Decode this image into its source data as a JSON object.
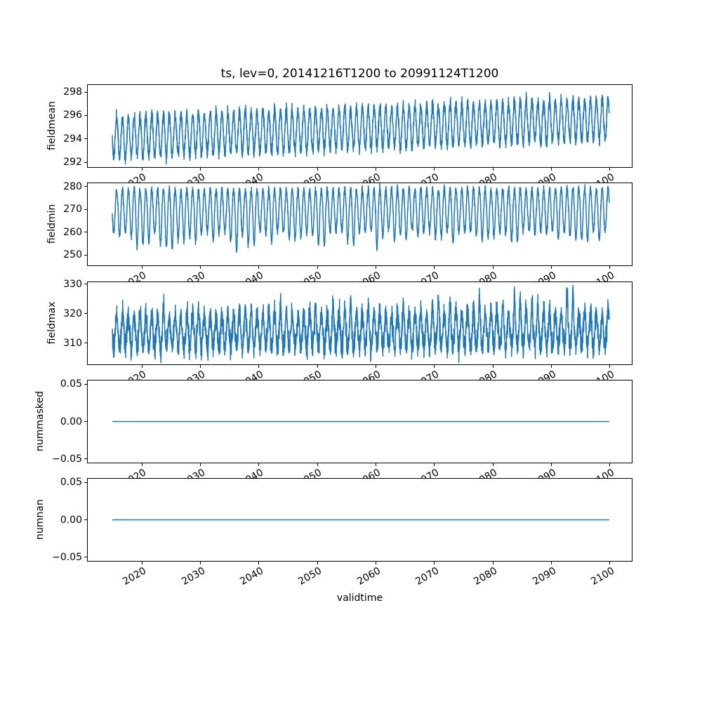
{
  "figure": {
    "title": "ts, lev=0, 20141216T1200 to 20991124T1200",
    "background_color": "#ffffff",
    "axes_edge_color": "#000000",
    "text_color": "#000000",
    "line_color": "#1f77b4"
  },
  "chart_data": {
    "type": "line",
    "title": "ts, lev=0, 20141216T1200 to 20991124T1200",
    "xlabel": "validtime",
    "x_axis": {
      "label": "validtime",
      "xlim": [
        2010.76,
        2103.76
      ],
      "data_x_start": 2014.96,
      "data_x_end": 2099.9,
      "points_per_year": 52,
      "xticks": [
        2020,
        2030,
        2040,
        2050,
        2060,
        2070,
        2080,
        2090,
        2100
      ],
      "xtick_labels": [
        "2020",
        "2030",
        "2040",
        "2050",
        "2060",
        "2070",
        "2080",
        "2090",
        "2100"
      ],
      "tick_rotation_deg": 30
    },
    "subplots": [
      {
        "ylabel": "fieldmean",
        "ylim": [
          291.6,
          298.6
        ],
        "yticks": [
          292,
          294,
          296,
          298
        ],
        "ytick_labels": [
          "292",
          "294",
          "296",
          "298"
        ],
        "observed_range": [
          291.9,
          298.3
        ],
        "description": "annual oscillation rising slowly over 2015-2099",
        "series": {
          "kind": "seasonal",
          "base": 294.15,
          "trend_total": 1.55,
          "seasonal_amp": 1.7,
          "noise_sd": 0.28,
          "winter_dip_max": 0,
          "summer_spike_max": 0,
          "seed": 11
        }
      },
      {
        "ylabel": "fieldmin",
        "ylim": [
          245.5,
          281.5
        ],
        "yticks": [
          250,
          260,
          270,
          280
        ],
        "ytick_labels": [
          "250",
          "260",
          "270",
          "280"
        ],
        "observed_range": [
          247.0,
          280.0
        ],
        "description": "annual oscillation with flat top near 278 and irregular deep winter dips to ~248",
        "series": {
          "kind": "seasonal",
          "base": 269.5,
          "trend_total": 0.5,
          "seasonal_amp": 9.0,
          "noise_sd": 0.9,
          "winter_dip_max": 7,
          "summer_spike_max": 0,
          "seed": 22
        }
      },
      {
        "ylabel": "fieldmax",
        "ylim": [
          302.8,
          330.6
        ],
        "yticks": [
          310,
          320,
          330
        ],
        "ytick_labels": [
          "310",
          "320",
          "330"
        ],
        "observed_range": [
          304.5,
          329.5
        ],
        "description": "noisy annual oscillation around 313 with summer peaks growing to ~330 late century",
        "series": {
          "kind": "seasonal",
          "base": 313.6,
          "trend_total": 0.8,
          "seasonal_amp": 5.5,
          "noise_sd": 2.0,
          "winter_dip_max": 0,
          "summer_spike_max": 7,
          "seed": 33
        }
      },
      {
        "ylabel": "nummasked",
        "ylim": [
          -0.055,
          0.055
        ],
        "yticks": [
          -0.05,
          0.0,
          0.05
        ],
        "ytick_labels": [
          "−0.05",
          "0.00",
          "0.05"
        ],
        "observed_range": [
          0,
          0
        ],
        "description": "constant zero line",
        "series": {
          "kind": "constant",
          "value": 0
        }
      },
      {
        "ylabel": "numnan",
        "ylim": [
          -0.055,
          0.055
        ],
        "yticks": [
          -0.05,
          0.0,
          0.05
        ],
        "ytick_labels": [
          "−0.05",
          "0.00",
          "0.05"
        ],
        "observed_range": [
          0,
          0
        ],
        "description": "constant zero line",
        "series": {
          "kind": "constant",
          "value": 0
        }
      }
    ]
  }
}
